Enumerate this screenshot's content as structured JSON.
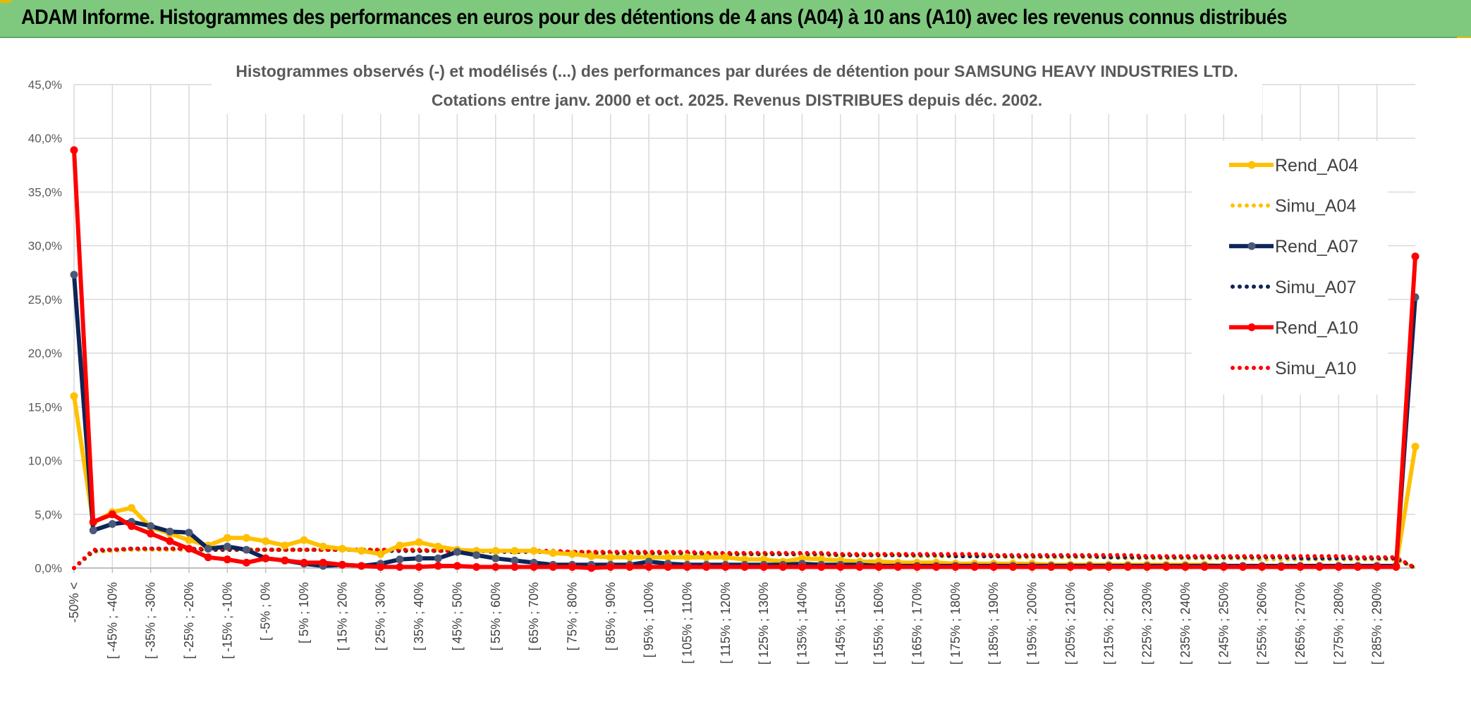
{
  "report_header": {
    "title": "ADAM Informe. Histogrammes des performances en euros pour des détentions de 4 ans (A04) à 10 ans (A10) avec les revenus connus distribués"
  },
  "chart_data": {
    "type": "line",
    "title": "Histogrammes observés (-) et modélisés (...) des performances par durées de détention pour SAMSUNG HEAVY INDUSTRIES LTD.",
    "subtitle": "Cotations entre janv. 2000 et oct. 2025. Revenus DISTRIBUES depuis déc. 2002.",
    "xlabel": "",
    "ylabel": "",
    "ylim": [
      0,
      45
    ],
    "y_ticks": [
      "0,0%",
      "5,0%",
      "10,0%",
      "15,0%",
      "20,0%",
      "25,0%",
      "30,0%",
      "35,0%",
      "40,0%",
      "45,0%"
    ],
    "grid": true,
    "legend_position": "top-right",
    "x_tick_labels": [
      "-50% <",
      "[ -45% ; -40%",
      "[ -35% ; -30%",
      "[ -25% ; -20%",
      "[ -15% ; -10%",
      "[ -5% ; 0%",
      "[ 5% ; 10%",
      "[ 15% ; 20%",
      "[ 25% ; 30%",
      "[ 35% ; 40%",
      "[ 45% ; 50%",
      "[ 55% ; 60%",
      "[ 65% ; 70%",
      "[ 75% ; 80%",
      "[ 85% ; 90%",
      "[ 95% ; 100%",
      "[ 105% ; 110%",
      "[ 115% ; 120%",
      "[ 125% ; 130%",
      "[ 135% ; 140%",
      "[ 145% ; 150%",
      "[ 155% ; 160%",
      "[ 165% ; 170%",
      "[ 175% ; 180%",
      "[ 185% ; 190%",
      "[ 195% ; 200%",
      "[ 205% ; 210%",
      "[ 215% ; 220%",
      "[ 225% ; 230%",
      "[ 235% ; 240%",
      "[ 245% ; 250%",
      "[ 255% ; 260%",
      "[ 265% ; 270%",
      "[ 275% ; 280%",
      "[ 285% ; 290%"
    ],
    "series": [
      {
        "name": "Rend_A04",
        "style": "solid",
        "color": "#ffc000",
        "values": [
          16.0,
          4.2,
          5.2,
          5.6,
          3.8,
          3.2,
          2.6,
          2.1,
          2.8,
          2.8,
          2.5,
          2.1,
          2.6,
          2.0,
          1.8,
          1.6,
          1.3,
          2.1,
          2.4,
          2.0,
          1.7,
          1.6,
          1.6,
          1.6,
          1.6,
          1.4,
          1.3,
          1.1,
          1.0,
          1.0,
          1.0,
          1.0,
          1.0,
          1.0,
          1.0,
          0.8,
          0.8,
          0.6,
          0.9,
          0.8,
          0.7,
          0.6,
          0.6,
          0.5,
          0.5,
          0.5,
          0.4,
          0.4,
          0.4,
          0.4,
          0.4,
          0.3,
          0.3,
          0.3,
          0.3,
          0.3,
          0.3,
          0.3,
          0.3,
          0.3,
          0.2,
          0.2,
          0.2,
          0.2,
          0.2,
          0.2,
          0.2,
          0.2,
          0.2,
          0.2,
          11.3
        ]
      },
      {
        "name": "Simu_A04",
        "style": "dotted",
        "color": "#ffc000",
        "values": [
          0.0,
          1.5,
          1.6,
          1.7,
          1.7,
          1.7,
          1.7,
          1.7,
          1.7,
          1.7,
          1.7,
          1.7,
          1.7,
          1.7,
          1.7,
          1.7,
          1.7,
          1.7,
          1.6,
          1.6,
          1.6,
          1.6,
          1.6,
          1.6,
          1.5,
          1.5,
          1.5,
          1.5,
          1.4,
          1.4,
          1.4,
          1.4,
          1.4,
          1.3,
          1.3,
          1.3,
          1.3,
          1.3,
          1.2,
          1.2,
          1.2,
          1.2,
          1.2,
          1.2,
          1.1,
          1.1,
          1.1,
          1.1,
          1.1,
          1.0,
          1.0,
          1.0,
          1.0,
          1.0,
          1.0,
          0.9,
          0.9,
          0.9,
          0.9,
          0.9,
          0.9,
          0.9,
          0.8,
          0.8,
          0.8,
          0.8,
          0.8,
          0.8,
          0.8,
          0.8,
          0.0
        ]
      },
      {
        "name": "Rend_A07",
        "style": "solid",
        "color": "#0d2557",
        "values": [
          27.3,
          3.5,
          4.1,
          4.3,
          3.9,
          3.4,
          3.3,
          1.8,
          2.0,
          1.7,
          0.9,
          0.7,
          0.4,
          0.2,
          0.3,
          0.2,
          0.4,
          0.8,
          0.9,
          0.9,
          1.5,
          1.2,
          0.9,
          0.7,
          0.5,
          0.3,
          0.3,
          0.3,
          0.3,
          0.3,
          0.6,
          0.4,
          0.3,
          0.3,
          0.3,
          0.3,
          0.3,
          0.3,
          0.4,
          0.3,
          0.3,
          0.3,
          0.2,
          0.2,
          0.2,
          0.2,
          0.2,
          0.2,
          0.2,
          0.2,
          0.2,
          0.2,
          0.2,
          0.2,
          0.2,
          0.2,
          0.2,
          0.2,
          0.2,
          0.2,
          0.2,
          0.2,
          0.2,
          0.2,
          0.2,
          0.2,
          0.2,
          0.2,
          0.2,
          0.2,
          25.2
        ]
      },
      {
        "name": "Simu_A07",
        "style": "dotted",
        "color": "#0d2557",
        "values": [
          0.0,
          1.6,
          1.7,
          1.8,
          1.8,
          1.8,
          1.8,
          1.7,
          1.7,
          1.7,
          1.7,
          1.7,
          1.7,
          1.7,
          1.7,
          1.7,
          1.6,
          1.6,
          1.6,
          1.6,
          1.6,
          1.6,
          1.5,
          1.5,
          1.5,
          1.5,
          1.5,
          1.4,
          1.4,
          1.4,
          1.4,
          1.4,
          1.4,
          1.3,
          1.3,
          1.3,
          1.3,
          1.3,
          1.3,
          1.3,
          1.2,
          1.2,
          1.2,
          1.2,
          1.2,
          1.2,
          1.1,
          1.1,
          1.1,
          1.1,
          1.1,
          1.1,
          1.1,
          1.1,
          1.0,
          1.0,
          1.0,
          1.0,
          1.0,
          1.0,
          1.0,
          1.0,
          1.0,
          1.0,
          0.9,
          0.9,
          0.9,
          0.9,
          0.9,
          0.9,
          0.0
        ]
      },
      {
        "name": "Rend_A10",
        "style": "solid",
        "color": "#ff0000",
        "values": [
          38.9,
          4.3,
          5.0,
          3.9,
          3.2,
          2.5,
          1.8,
          1.0,
          0.8,
          0.5,
          0.9,
          0.7,
          0.5,
          0.5,
          0.3,
          0.2,
          0.1,
          0.1,
          0.1,
          0.2,
          0.2,
          0.1,
          0.1,
          0.1,
          0.1,
          0.1,
          0.1,
          0.0,
          0.1,
          0.1,
          0.1,
          0.1,
          0.1,
          0.1,
          0.1,
          0.1,
          0.1,
          0.1,
          0.1,
          0.1,
          0.1,
          0.1,
          0.1,
          0.1,
          0.1,
          0.1,
          0.1,
          0.1,
          0.1,
          0.1,
          0.1,
          0.1,
          0.1,
          0.1,
          0.1,
          0.1,
          0.1,
          0.1,
          0.1,
          0.1,
          0.1,
          0.1,
          0.1,
          0.1,
          0.1,
          0.1,
          0.1,
          0.1,
          0.1,
          0.1,
          29.0
        ]
      },
      {
        "name": "Simu_A10",
        "style": "dotted",
        "color": "#ff0000",
        "values": [
          0.0,
          1.7,
          1.7,
          1.8,
          1.8,
          1.8,
          1.8,
          1.8,
          1.8,
          1.7,
          1.7,
          1.7,
          1.7,
          1.7,
          1.7,
          1.7,
          1.7,
          1.7,
          1.7,
          1.6,
          1.6,
          1.6,
          1.6,
          1.6,
          1.6,
          1.6,
          1.5,
          1.5,
          1.5,
          1.5,
          1.5,
          1.5,
          1.5,
          1.4,
          1.4,
          1.4,
          1.4,
          1.4,
          1.4,
          1.4,
          1.3,
          1.3,
          1.3,
          1.3,
          1.3,
          1.3,
          1.3,
          1.3,
          1.2,
          1.2,
          1.2,
          1.2,
          1.2,
          1.2,
          1.2,
          1.2,
          1.1,
          1.1,
          1.1,
          1.1,
          1.1,
          1.1,
          1.1,
          1.1,
          1.1,
          1.1,
          1.1,
          1.0,
          1.0,
          1.0,
          0.0
        ]
      }
    ]
  }
}
